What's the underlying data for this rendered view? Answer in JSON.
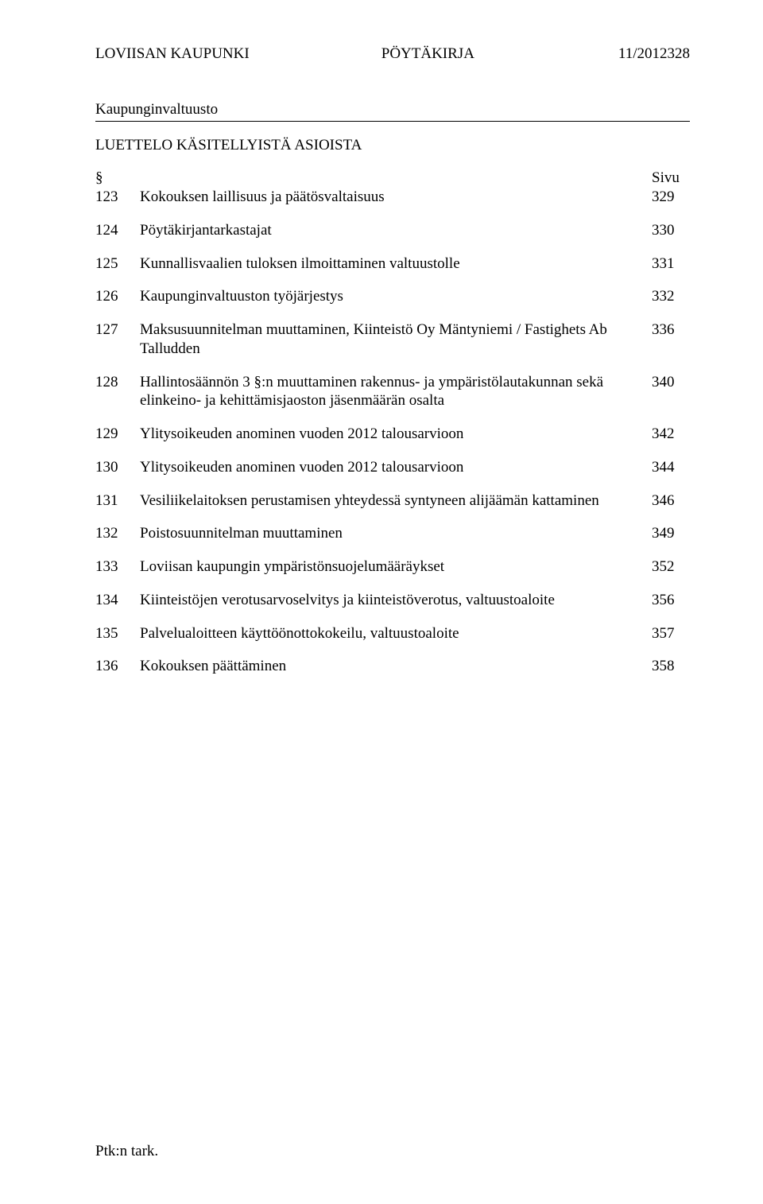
{
  "header": {
    "org": "LOVIISAN KAUPUNKI",
    "doc_type": "PÖYTÄKIRJA",
    "doc_number": "11/2012",
    "page_number": "328"
  },
  "body_title": "Kaupunginvaltuusto",
  "list_title": "LUETTELO KÄSITELLYISTÄ ASIOISTA",
  "columns": {
    "section_symbol": "§",
    "page_label": "Sivu"
  },
  "items": [
    {
      "num": "123",
      "desc": "Kokouksen laillisuus ja päätösvaltaisuus",
      "page": "329"
    },
    {
      "num": "124",
      "desc": "Pöytäkirjantarkastajat",
      "page": "330"
    },
    {
      "num": "125",
      "desc": "Kunnallisvaalien tuloksen ilmoittaminen valtuustolle",
      "page": "331"
    },
    {
      "num": "126",
      "desc": "Kaupunginvaltuuston työjärjestys",
      "page": "332"
    },
    {
      "num": "127",
      "desc": "Maksusuunnitelman muuttaminen, Kiinteistö Oy Mäntyniemi / Fastighets Ab Talludden",
      "page": "336"
    },
    {
      "num": "128",
      "desc": "Hallintosäännön 3 §:n muuttaminen rakennus- ja ympäristölautakunnan sekä elinkeino- ja kehittämisjaoston jäsenmäärän osalta",
      "page": "340"
    },
    {
      "num": "129",
      "desc": "Ylitysoikeuden anominen vuoden 2012 talousarvioon",
      "page": "342"
    },
    {
      "num": "130",
      "desc": "Ylitysoikeuden anominen vuoden 2012 talousarvioon",
      "page": "344"
    },
    {
      "num": "131",
      "desc": "Vesiliikelaitoksen perustamisen yhteydessä syntyneen alijäämän kattaminen",
      "page": "346"
    },
    {
      "num": "132",
      "desc": "Poistosuunnitelman muuttaminen",
      "page": "349"
    },
    {
      "num": "133",
      "desc": "Loviisan kaupungin ympäristönsuojelumääräykset",
      "page": "352"
    },
    {
      "num": "134",
      "desc": "Kiinteistöjen verotusarvoselvitys ja kiinteistöverotus, valtuustoaloite",
      "page": "356"
    },
    {
      "num": "135",
      "desc": "Palvelualoitteen käyttöönottokokeilu, valtuustoaloite",
      "page": "357"
    },
    {
      "num": "136",
      "desc": "Kokouksen päättäminen",
      "page": "358"
    }
  ],
  "footer": "Ptk:n tark."
}
